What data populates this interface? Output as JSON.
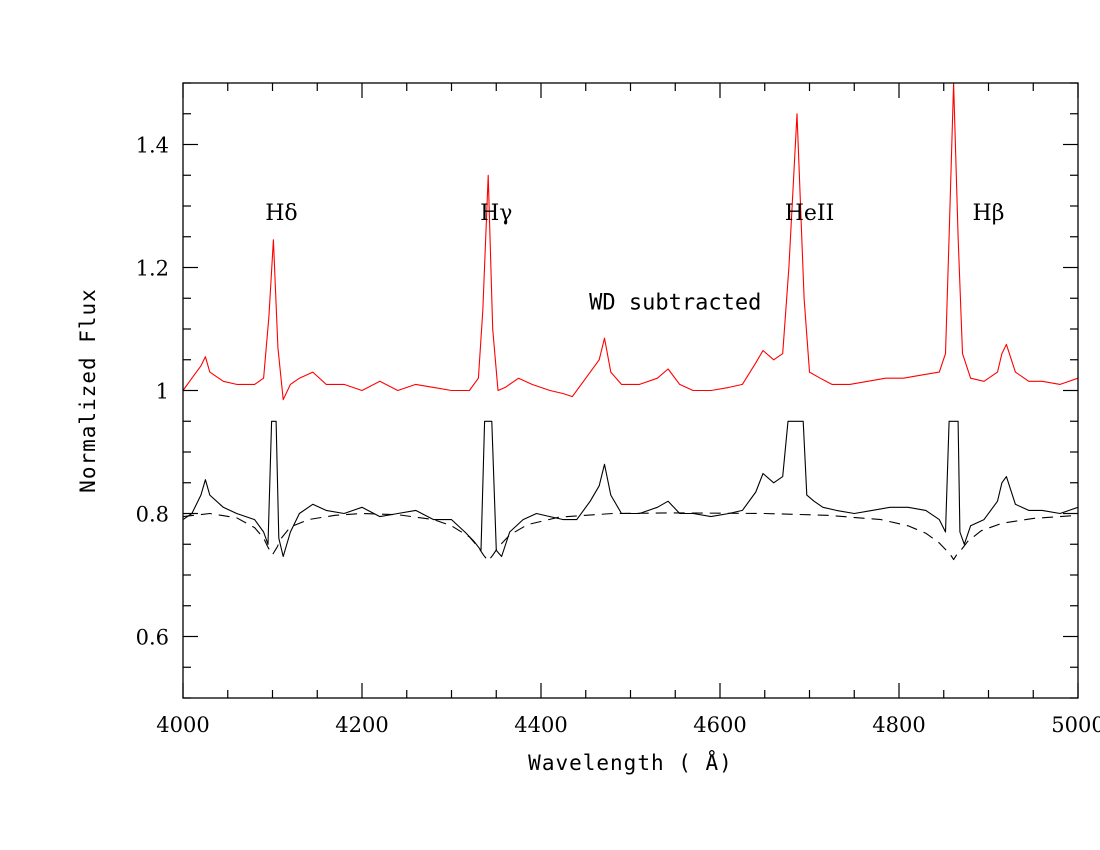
{
  "chart_data": {
    "type": "line",
    "xlabel": "Wavelength ( Å)",
    "ylabel": "Normalized Flux",
    "xlim": [
      4000,
      5000
    ],
    "ylim": [
      0.5,
      1.5
    ],
    "x_ticks": [
      4000,
      4200,
      4400,
      4600,
      4800,
      5000
    ],
    "x_tick_labels": [
      "4000",
      "4200",
      "4400",
      "4600",
      "4800",
      "5000"
    ],
    "y_ticks": [
      0.6,
      0.8,
      1.0,
      1.2,
      1.4
    ],
    "y_tick_labels": [
      "0.6",
      "0.8",
      "1",
      "1.2",
      "1.4"
    ],
    "grid": false,
    "annotations": [
      {
        "text": "Hδ",
        "x": 4110,
        "y": 1.29
      },
      {
        "text": "Hγ",
        "x": 4350,
        "y": 1.29
      },
      {
        "text": "HeII",
        "x": 4700,
        "y": 1.29
      },
      {
        "text": "Hβ",
        "x": 4900,
        "y": 1.29
      },
      {
        "text": "WD subtracted",
        "x": 4550,
        "y": 1.145
      }
    ],
    "series": [
      {
        "color": "#ff0000",
        "style": "solid",
        "x": [
          4000,
          4010,
          4020,
          4025,
          4030,
          4045,
          4060,
          4080,
          4090,
          4096,
          4101,
          4106,
          4112,
          4120,
          4130,
          4145,
          4160,
          4180,
          4200,
          4220,
          4240,
          4260,
          4280,
          4300,
          4320,
          4330,
          4335,
          4341,
          4346,
          4352,
          4360,
          4375,
          4390,
          4410,
          4425,
          4435,
          4450,
          4465,
          4471,
          4478,
          4490,
          4510,
          4530,
          4542,
          4555,
          4570,
          4590,
          4610,
          4625,
          4640,
          4648,
          4660,
          4670,
          4677,
          4686,
          4694,
          4700,
          4712,
          4725,
          4745,
          4765,
          4785,
          4805,
          4825,
          4845,
          4852,
          4856,
          4861,
          4866,
          4871,
          4880,
          4895,
          4910,
          4915,
          4920,
          4930,
          4945,
          4960,
          4980,
          5000
        ],
        "y": [
          1.0,
          1.02,
          1.04,
          1.055,
          1.03,
          1.015,
          1.01,
          1.01,
          1.02,
          1.12,
          1.245,
          1.07,
          0.985,
          1.01,
          1.02,
          1.03,
          1.01,
          1.01,
          1.0,
          1.015,
          1.0,
          1.01,
          1.005,
          1.0,
          1.0,
          1.02,
          1.13,
          1.35,
          1.1,
          1.0,
          1.005,
          1.02,
          1.01,
          1.0,
          0.995,
          0.99,
          1.02,
          1.05,
          1.085,
          1.03,
          1.01,
          1.01,
          1.02,
          1.035,
          1.01,
          1.0,
          1.0,
          1.005,
          1.01,
          1.045,
          1.065,
          1.05,
          1.06,
          1.2,
          1.45,
          1.15,
          1.03,
          1.02,
          1.01,
          1.01,
          1.015,
          1.02,
          1.02,
          1.025,
          1.03,
          1.06,
          1.25,
          1.5,
          1.25,
          1.06,
          1.02,
          1.015,
          1.03,
          1.06,
          1.075,
          1.03,
          1.015,
          1.015,
          1.01,
          1.02
        ]
      },
      {
        "color": "#000000",
        "style": "solid",
        "x": [
          4000,
          4010,
          4020,
          4025,
          4030,
          4045,
          4060,
          4080,
          4090,
          4095,
          4099,
          4104,
          4107,
          4112,
          4120,
          4130,
          4145,
          4160,
          4180,
          4200,
          4220,
          4240,
          4260,
          4280,
          4300,
          4315,
          4325,
          4333,
          4337,
          4345,
          4350,
          4356,
          4365,
          4380,
          4395,
          4410,
          4425,
          4440,
          4455,
          4465,
          4471,
          4478,
          4490,
          4510,
          4530,
          4542,
          4555,
          4570,
          4590,
          4610,
          4625,
          4640,
          4648,
          4660,
          4670,
          4676,
          4680,
          4693,
          4697,
          4705,
          4715,
          4730,
          4750,
          4770,
          4790,
          4810,
          4830,
          4845,
          4852,
          4856,
          4858,
          4866,
          4868,
          4873,
          4880,
          4895,
          4910,
          4915,
          4920,
          4930,
          4945,
          4960,
          4980,
          5000
        ],
        "y": [
          0.79,
          0.8,
          0.83,
          0.855,
          0.83,
          0.81,
          0.8,
          0.79,
          0.77,
          0.75,
          0.95,
          0.95,
          0.76,
          0.73,
          0.77,
          0.8,
          0.815,
          0.805,
          0.8,
          0.81,
          0.795,
          0.8,
          0.805,
          0.79,
          0.79,
          0.77,
          0.755,
          0.74,
          0.95,
          0.95,
          0.74,
          0.73,
          0.77,
          0.79,
          0.8,
          0.795,
          0.79,
          0.79,
          0.82,
          0.845,
          0.88,
          0.83,
          0.8,
          0.8,
          0.81,
          0.82,
          0.8,
          0.8,
          0.795,
          0.8,
          0.805,
          0.835,
          0.865,
          0.85,
          0.86,
          0.95,
          0.95,
          0.95,
          0.83,
          0.82,
          0.81,
          0.805,
          0.8,
          0.805,
          0.81,
          0.81,
          0.805,
          0.79,
          0.77,
          0.95,
          0.95,
          0.95,
          0.77,
          0.75,
          0.78,
          0.79,
          0.82,
          0.85,
          0.86,
          0.815,
          0.805,
          0.805,
          0.8,
          0.81
        ]
      },
      {
        "color": "#000000",
        "style": "dashed",
        "x": [
          4000,
          4030,
          4060,
          4080,
          4090,
          4095,
          4100,
          4105,
          4110,
          4120,
          4140,
          4170,
          4200,
          4240,
          4280,
          4300,
          4320,
          4330,
          4336,
          4341,
          4346,
          4352,
          4365,
          4385,
          4420,
          4480,
          4550,
          4650,
          4720,
          4780,
          4810,
          4830,
          4845,
          4853,
          4858,
          4861,
          4864,
          4869,
          4877,
          4892,
          4915,
          4950,
          5000
        ],
        "y": [
          0.795,
          0.8,
          0.793,
          0.777,
          0.76,
          0.745,
          0.733,
          0.745,
          0.76,
          0.778,
          0.79,
          0.797,
          0.8,
          0.798,
          0.79,
          0.78,
          0.762,
          0.745,
          0.732,
          0.723,
          0.732,
          0.745,
          0.765,
          0.782,
          0.794,
          0.8,
          0.801,
          0.8,
          0.797,
          0.79,
          0.78,
          0.768,
          0.752,
          0.74,
          0.732,
          0.725,
          0.732,
          0.74,
          0.755,
          0.772,
          0.784,
          0.792,
          0.797
        ]
      }
    ]
  }
}
